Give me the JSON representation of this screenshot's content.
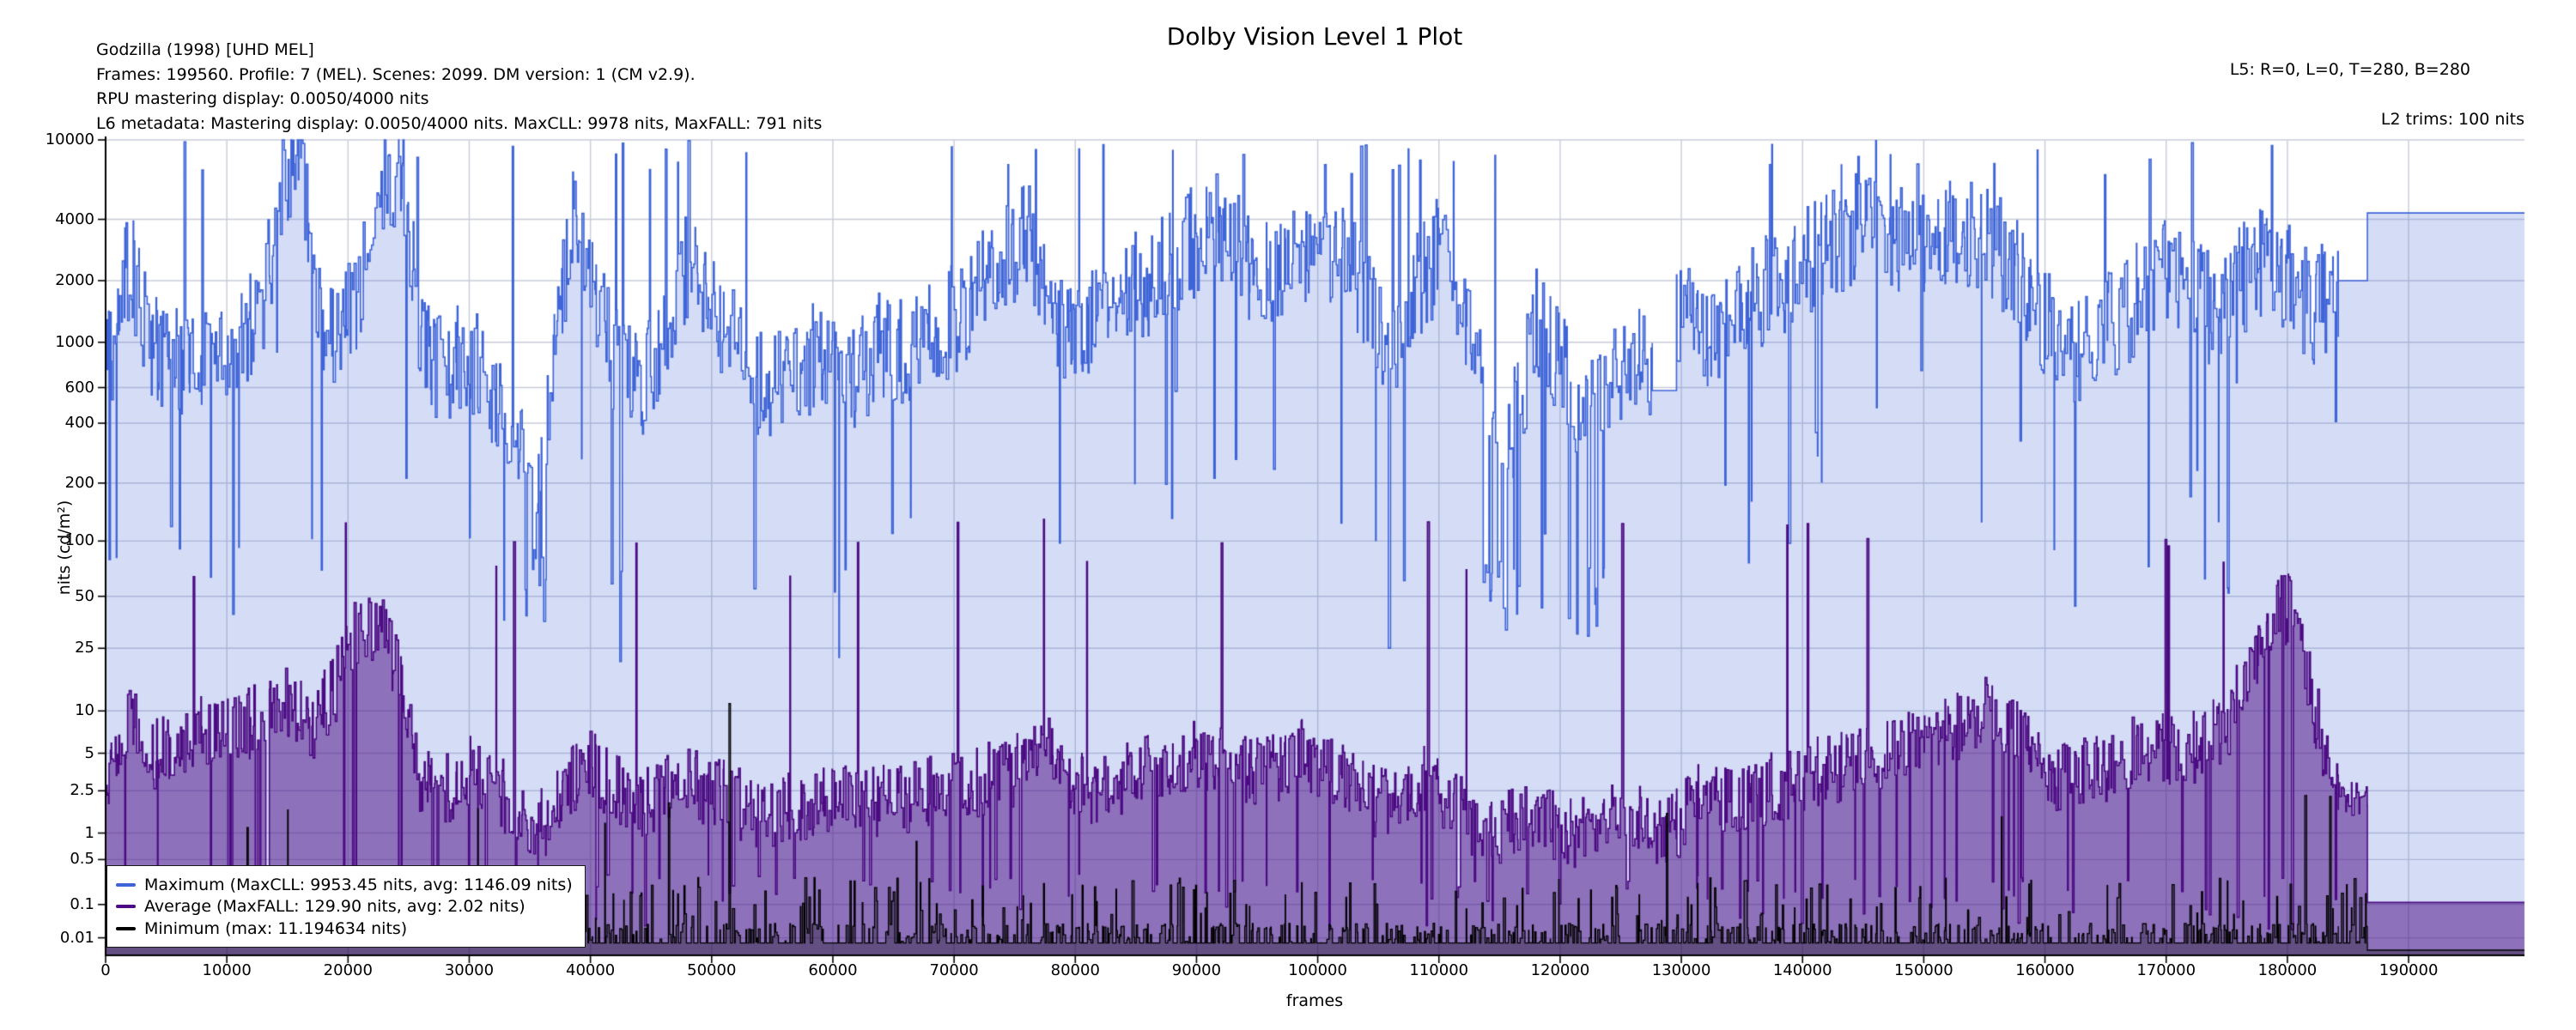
{
  "header": {
    "left_lines": [
      "Godzilla (1998) [UHD MEL]",
      "Frames: 199560. Profile: 7 (MEL). Scenes: 2099. DM version: 1 (CM v2.9).",
      "RPU mastering display: 0.0050/4000 nits",
      "L6 metadata: Mastering display: 0.0050/4000 nits. MaxCLL: 9978 nits, MaxFALL: 791 nits"
    ],
    "right_line1": "L5: R=0, L=0, T=280, B=280",
    "right_line2": "L2 trims: 100 nits"
  },
  "chart_data": {
    "type": "area",
    "title": "Dolby Vision Level 1 Plot",
    "xlabel": "frames",
    "ylabel": "nits (cd/m²)",
    "grid": true,
    "legend_position": "lower left",
    "y_scale": "PQ (SMPTE ST 2084), 0 to 10000 nits",
    "x_range": [
      0,
      199560
    ],
    "total_frames": 199560,
    "scene_count": 2099,
    "x_ticks": [
      0,
      10000,
      20000,
      30000,
      40000,
      50000,
      60000,
      70000,
      80000,
      90000,
      100000,
      110000,
      120000,
      130000,
      140000,
      150000,
      160000,
      170000,
      180000,
      190000
    ],
    "y_ticks": [
      10000,
      4000,
      2000,
      1000,
      600,
      400,
      200,
      100,
      50,
      25,
      10,
      5,
      2.5,
      1,
      0.5,
      0.1,
      0.01
    ],
    "series": [
      {
        "name": "Maximum",
        "legend_label": "Maximum (MaxCLL: 9953.45 nits, avg: 1146.09 nits)",
        "color": "#3E64D8",
        "fill": "rgba(62,100,216,0.22)",
        "max_nits": 9953.45,
        "avg_nits": 1146.09
      },
      {
        "name": "Average",
        "legend_label": "Average (MaxFALL: 129.90 nits, avg: 2.02 nits)",
        "color": "#4B0A82",
        "fill": "rgba(75,10,130,0.51)",
        "max_nits": 129.9,
        "avg_nits": 2.02
      },
      {
        "name": "Minimum",
        "legend_label": "Minimum (max: 11.194634 nits)",
        "color": "#000000",
        "fill": "rgba(0,0,0,0.30)",
        "max_nits": 11.194634
      }
    ],
    "approx_envelope": {
      "comment": "Estimated per-scene level envelopes read from the plot, [frame, nits]",
      "max_nits": [
        [
          0,
          700
        ],
        [
          2000,
          2500
        ],
        [
          4000,
          900
        ],
        [
          7000,
          800
        ],
        [
          10000,
          900
        ],
        [
          13000,
          1500
        ],
        [
          14500,
          6000
        ],
        [
          16000,
          9000
        ],
        [
          17500,
          1500
        ],
        [
          19000,
          900
        ],
        [
          21000,
          2000
        ],
        [
          23000,
          6000
        ],
        [
          24500,
          7000
        ],
        [
          26000,
          1000
        ],
        [
          28000,
          700
        ],
        [
          30000,
          900
        ],
        [
          32000,
          500
        ],
        [
          34000,
          300
        ],
        [
          35500,
          150
        ],
        [
          37000,
          800
        ],
        [
          38500,
          5000
        ],
        [
          40000,
          2000
        ],
        [
          42000,
          800
        ],
        [
          44000,
          600
        ],
        [
          46000,
          900
        ],
        [
          48000,
          2500
        ],
        [
          50000,
          1500
        ],
        [
          52000,
          900
        ],
        [
          54000,
          600
        ],
        [
          56000,
          700
        ],
        [
          58000,
          800
        ],
        [
          60000,
          900
        ],
        [
          62000,
          700
        ],
        [
          64000,
          1000
        ],
        [
          66000,
          900
        ],
        [
          68000,
          1100
        ],
        [
          70000,
          1300
        ],
        [
          72000,
          1800
        ],
        [
          74000,
          2500
        ],
        [
          76000,
          3500
        ],
        [
          78000,
          1500
        ],
        [
          80000,
          1000
        ],
        [
          82000,
          1400
        ],
        [
          84000,
          1800
        ],
        [
          86000,
          2000
        ],
        [
          88000,
          2500
        ],
        [
          90000,
          3200
        ],
        [
          92000,
          3800
        ],
        [
          94000,
          2500
        ],
        [
          96000,
          2200
        ],
        [
          98000,
          2800
        ],
        [
          100000,
          3200
        ],
        [
          102000,
          2800
        ],
        [
          104000,
          1500
        ],
        [
          106000,
          1000
        ],
        [
          108000,
          1800
        ],
        [
          110000,
          2800
        ],
        [
          112000,
          1500
        ],
        [
          114000,
          500
        ],
        [
          116000,
          350
        ],
        [
          118000,
          1200
        ],
        [
          120000,
          800
        ],
        [
          122000,
          350
        ],
        [
          124000,
          700
        ],
        [
          126000,
          900
        ],
        [
          128000,
          580
        ],
        [
          130000,
          1400
        ],
        [
          132000,
          1100
        ],
        [
          134000,
          1300
        ],
        [
          136000,
          1600
        ],
        [
          138000,
          2000
        ],
        [
          140000,
          2400
        ],
        [
          142000,
          3000
        ],
        [
          144000,
          3500
        ],
        [
          146000,
          4200
        ],
        [
          148000,
          3000
        ],
        [
          150000,
          3200
        ],
        [
          152000,
          3600
        ],
        [
          154000,
          3400
        ],
        [
          156000,
          2800
        ],
        [
          158000,
          2200
        ],
        [
          160000,
          1200
        ],
        [
          162000,
          900
        ],
        [
          164000,
          1100
        ],
        [
          166000,
          1300
        ],
        [
          168000,
          1800
        ],
        [
          170000,
          2400
        ],
        [
          172000,
          1800
        ],
        [
          174000,
          1400
        ],
        [
          176000,
          2000
        ],
        [
          178000,
          2600
        ],
        [
          180000,
          2000
        ],
        [
          182000,
          1400
        ],
        [
          183500,
          1800
        ],
        [
          184200,
          2000
        ],
        [
          186600,
          4300
        ],
        [
          199560,
          4300
        ]
      ],
      "avg_nits": [
        [
          0,
          3
        ],
        [
          2000,
          8
        ],
        [
          4000,
          5
        ],
        [
          7000,
          7
        ],
        [
          10000,
          7
        ],
        [
          13000,
          9
        ],
        [
          15000,
          12
        ],
        [
          17000,
          8
        ],
        [
          19000,
          15
        ],
        [
          20500,
          30
        ],
        [
          22500,
          35
        ],
        [
          24000,
          20
        ],
        [
          26000,
          3
        ],
        [
          28000,
          2.5
        ],
        [
          30000,
          4
        ],
        [
          32000,
          3
        ],
        [
          34000,
          1.5
        ],
        [
          36000,
          1.2
        ],
        [
          38000,
          3
        ],
        [
          40000,
          4
        ],
        [
          42000,
          2.5
        ],
        [
          44000,
          2
        ],
        [
          46000,
          2.5
        ],
        [
          48000,
          3
        ],
        [
          50000,
          2.5
        ],
        [
          52000,
          2
        ],
        [
          54000,
          1.6
        ],
        [
          56000,
          1.8
        ],
        [
          58000,
          2
        ],
        [
          60000,
          2.2
        ],
        [
          62000,
          1.8
        ],
        [
          64000,
          2
        ],
        [
          66000,
          2.2
        ],
        [
          68000,
          2.5
        ],
        [
          70000,
          2.8
        ],
        [
          72000,
          3
        ],
        [
          74000,
          3.5
        ],
        [
          76000,
          4
        ],
        [
          77500,
          6
        ],
        [
          79000,
          3
        ],
        [
          81000,
          2.5
        ],
        [
          83000,
          3
        ],
        [
          85000,
          3.5
        ],
        [
          87000,
          4
        ],
        [
          89000,
          4.5
        ],
        [
          91000,
          5
        ],
        [
          93000,
          4
        ],
        [
          95000,
          3.5
        ],
        [
          97000,
          4
        ],
        [
          99000,
          5
        ],
        [
          101000,
          4
        ],
        [
          103000,
          2.5
        ],
        [
          105000,
          2
        ],
        [
          107000,
          2.5
        ],
        [
          109000,
          3
        ],
        [
          111000,
          2
        ],
        [
          113000,
          1.2
        ],
        [
          115000,
          1
        ],
        [
          117000,
          1.5
        ],
        [
          119000,
          1.2
        ],
        [
          121000,
          1
        ],
        [
          123000,
          1.2
        ],
        [
          125000,
          1.5
        ],
        [
          127000,
          1.2
        ],
        [
          129000,
          1
        ],
        [
          131000,
          2
        ],
        [
          133000,
          2.2
        ],
        [
          135000,
          2
        ],
        [
          137000,
          2.5
        ],
        [
          139000,
          3
        ],
        [
          141000,
          3.5
        ],
        [
          143000,
          4
        ],
        [
          145000,
          5
        ],
        [
          147000,
          5
        ],
        [
          149000,
          6
        ],
        [
          151000,
          6
        ],
        [
          153000,
          8
        ],
        [
          155000,
          10
        ],
        [
          157000,
          8
        ],
        [
          159000,
          5
        ],
        [
          161000,
          3
        ],
        [
          163000,
          3.5
        ],
        [
          165000,
          4
        ],
        [
          167000,
          5
        ],
        [
          169000,
          6
        ],
        [
          171000,
          5
        ],
        [
          173000,
          6
        ],
        [
          175000,
          8
        ],
        [
          177000,
          20
        ],
        [
          179000,
          45
        ],
        [
          180500,
          40
        ],
        [
          182000,
          12
        ],
        [
          183500,
          4
        ],
        [
          184500,
          2.5
        ],
        [
          186000,
          2
        ],
        [
          186600,
          0.11
        ],
        [
          199560,
          0.11
        ]
      ]
    },
    "features": {
      "maxcll_spike": {
        "frame": 15500,
        "nits": 9953.45
      },
      "maxfall_spike": {
        "frame": 77400,
        "nits": 129.9
      },
      "min_peak": {
        "frame": 51500,
        "nits": 11.194634
      },
      "deep_dip_clusters": [
        [
          34500,
          36800
        ],
        [
          113500,
          117000
        ],
        [
          120800,
          123800
        ]
      ],
      "plateau": {
        "range": [
          127600,
          129600
        ],
        "nits": 580
      },
      "pre_tail": {
        "range": [
          184200,
          186600
        ],
        "max_nits": 2000
      },
      "tail_flat": {
        "start": 186600,
        "max_nits": 4300,
        "avg_nits": 0.11,
        "min_nits": 0.001
      }
    },
    "colors": {
      "grid": "#c8ccd8",
      "spine": "#000000",
      "background": "#ffffff"
    }
  }
}
